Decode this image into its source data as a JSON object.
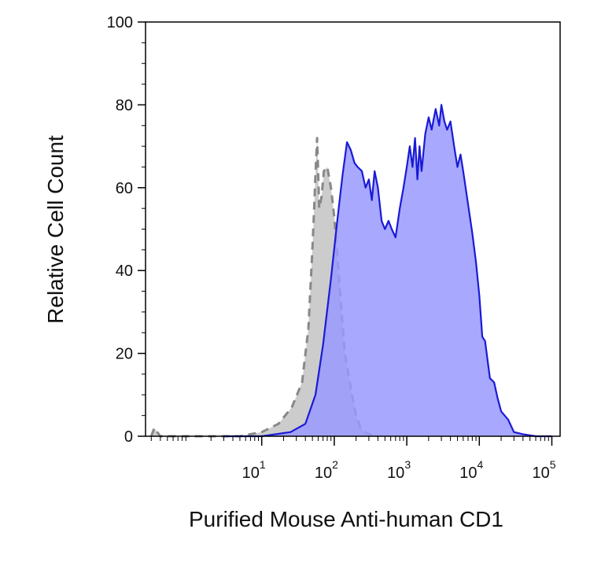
{
  "chart_data": {
    "type": "area",
    "title": "",
    "xlabel": "Purified Mouse Anti-human CD1",
    "ylabel": "Relative Cell Count",
    "xscale": "log",
    "xlim": [
      0.25,
      130000
    ],
    "ylim": [
      0,
      100
    ],
    "grid": false,
    "legend": "none",
    "y_ticks": [
      0,
      20,
      40,
      60,
      80,
      100
    ],
    "y_tick_labels": [
      "0",
      "20",
      "40",
      "60",
      "80",
      "100"
    ],
    "x_ticks": [
      10,
      100,
      1000,
      10000,
      100000
    ],
    "x_tick_labels": [
      {
        "base": "10",
        "exp": "1"
      },
      {
        "base": "10",
        "exp": "2"
      },
      {
        "base": "10",
        "exp": "3"
      },
      {
        "base": "10",
        "exp": "4"
      },
      {
        "base": "10",
        "exp": "5"
      }
    ],
    "series": [
      {
        "fill": "#cccccc",
        "stroke": "#888888",
        "line_style": "dashed",
        "x": [
          0.3,
          0.33,
          0.4,
          1.0,
          2.0,
          5.0,
          10,
          17,
          26,
          36,
          44,
          49,
          52,
          55,
          58,
          62,
          67,
          72,
          80,
          90,
          100,
          110,
          120,
          130,
          140,
          160,
          180,
          200,
          230,
          260,
          300,
          400
        ],
        "y": [
          0,
          2,
          0,
          0,
          0,
          0,
          1,
          3,
          7,
          13,
          26,
          42,
          52,
          63,
          72,
          55,
          58,
          64,
          65,
          60,
          53,
          44,
          35,
          27,
          20,
          14,
          9,
          5,
          2,
          1,
          0.5,
          0
        ]
      },
      {
        "fill": "#9999ff",
        "stroke": "#1a1ad6",
        "line_style": "solid",
        "x": [
          3,
          10,
          25,
          40,
          55,
          70,
          90,
          110,
          130,
          150,
          170,
          190,
          210,
          240,
          270,
          300,
          330,
          360,
          400,
          450,
          500,
          560,
          620,
          700,
          800,
          900,
          1000,
          1100,
          1200,
          1300,
          1400,
          1500,
          1600,
          1800,
          2000,
          2200,
          2500,
          2800,
          3000,
          3300,
          3600,
          4000,
          4500,
          5000,
          5500,
          6000,
          7000,
          8000,
          9000,
          10000,
          11000,
          12000,
          14000,
          16000,
          18000,
          20000,
          25000,
          30000,
          40000,
          60000,
          100000
        ],
        "y": [
          0,
          0,
          1,
          3,
          10,
          22,
          38,
          52,
          63,
          71,
          69,
          66,
          65,
          64,
          60,
          62,
          57,
          64,
          60,
          52,
          50,
          52,
          50,
          48,
          55,
          60,
          65,
          70,
          65,
          72,
          62,
          70,
          64,
          73,
          77,
          74,
          79,
          75,
          80,
          76,
          74,
          76,
          70,
          65,
          68,
          64,
          56,
          49,
          42,
          34,
          24,
          23,
          14,
          13,
          9,
          6,
          4,
          1,
          0.5,
          0,
          0
        ]
      }
    ]
  }
}
